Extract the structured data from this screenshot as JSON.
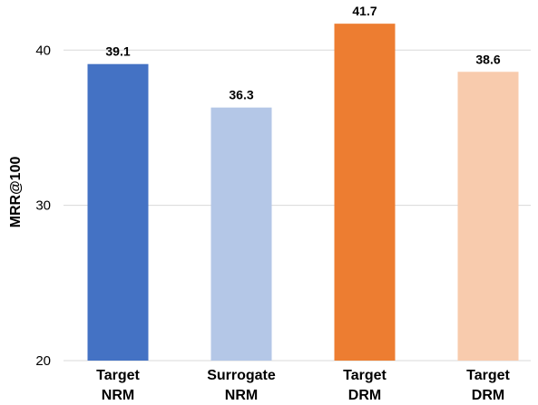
{
  "chart_data": {
    "type": "bar",
    "categories": [
      [
        "Target",
        "NRM"
      ],
      [
        "Surrogate",
        "NRM"
      ],
      [
        "Target",
        "DRM"
      ],
      [
        "Target",
        "DRM"
      ]
    ],
    "values": [
      39.1,
      36.3,
      41.7,
      38.6
    ],
    "data_labels": [
      "39.1",
      "36.3",
      "41.7",
      "38.6"
    ],
    "bar_colors": [
      "#4472c4",
      "#b4c7e7",
      "#ed7d31",
      "#f8cbad"
    ],
    "ylabel": "MRR@100",
    "ylim": [
      20,
      42
    ],
    "yticks": [
      20,
      30,
      40
    ],
    "ytick_labels": [
      "20",
      "30",
      "40"
    ],
    "grid": true,
    "legend": false
  }
}
